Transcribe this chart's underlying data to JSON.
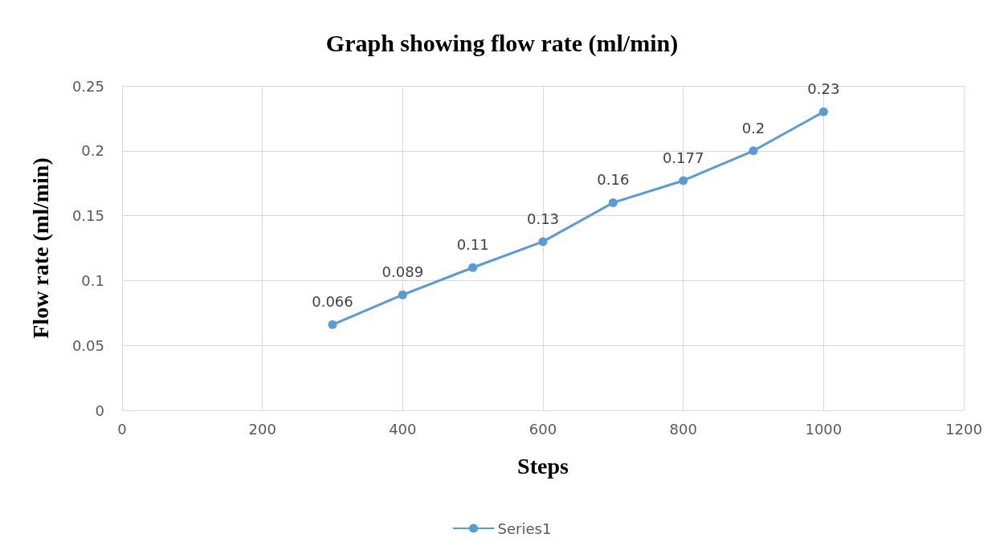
{
  "chart_data": {
    "type": "line",
    "title": "Graph showing flow rate (ml/min)",
    "xlabel": "Steps",
    "ylabel": "Flow rate (ml/min)",
    "x": [
      300,
      400,
      500,
      600,
      700,
      800,
      900,
      1000
    ],
    "series": [
      {
        "name": "Series1",
        "color": "#5b9bd5",
        "values": [
          0.066,
          0.089,
          0.11,
          0.13,
          0.16,
          0.177,
          0.2,
          0.23
        ]
      }
    ],
    "xlim": [
      0,
      1200
    ],
    "xticks": [
      0,
      200,
      400,
      600,
      800,
      1000,
      1200
    ],
    "ylim": [
      0,
      0.25
    ],
    "yticks": [
      0,
      0.05,
      0.1,
      0.15,
      0.2,
      0.25
    ],
    "grid": true,
    "legend": "bottom",
    "marker": "circle",
    "line_style": "solid",
    "data_labels": true
  }
}
